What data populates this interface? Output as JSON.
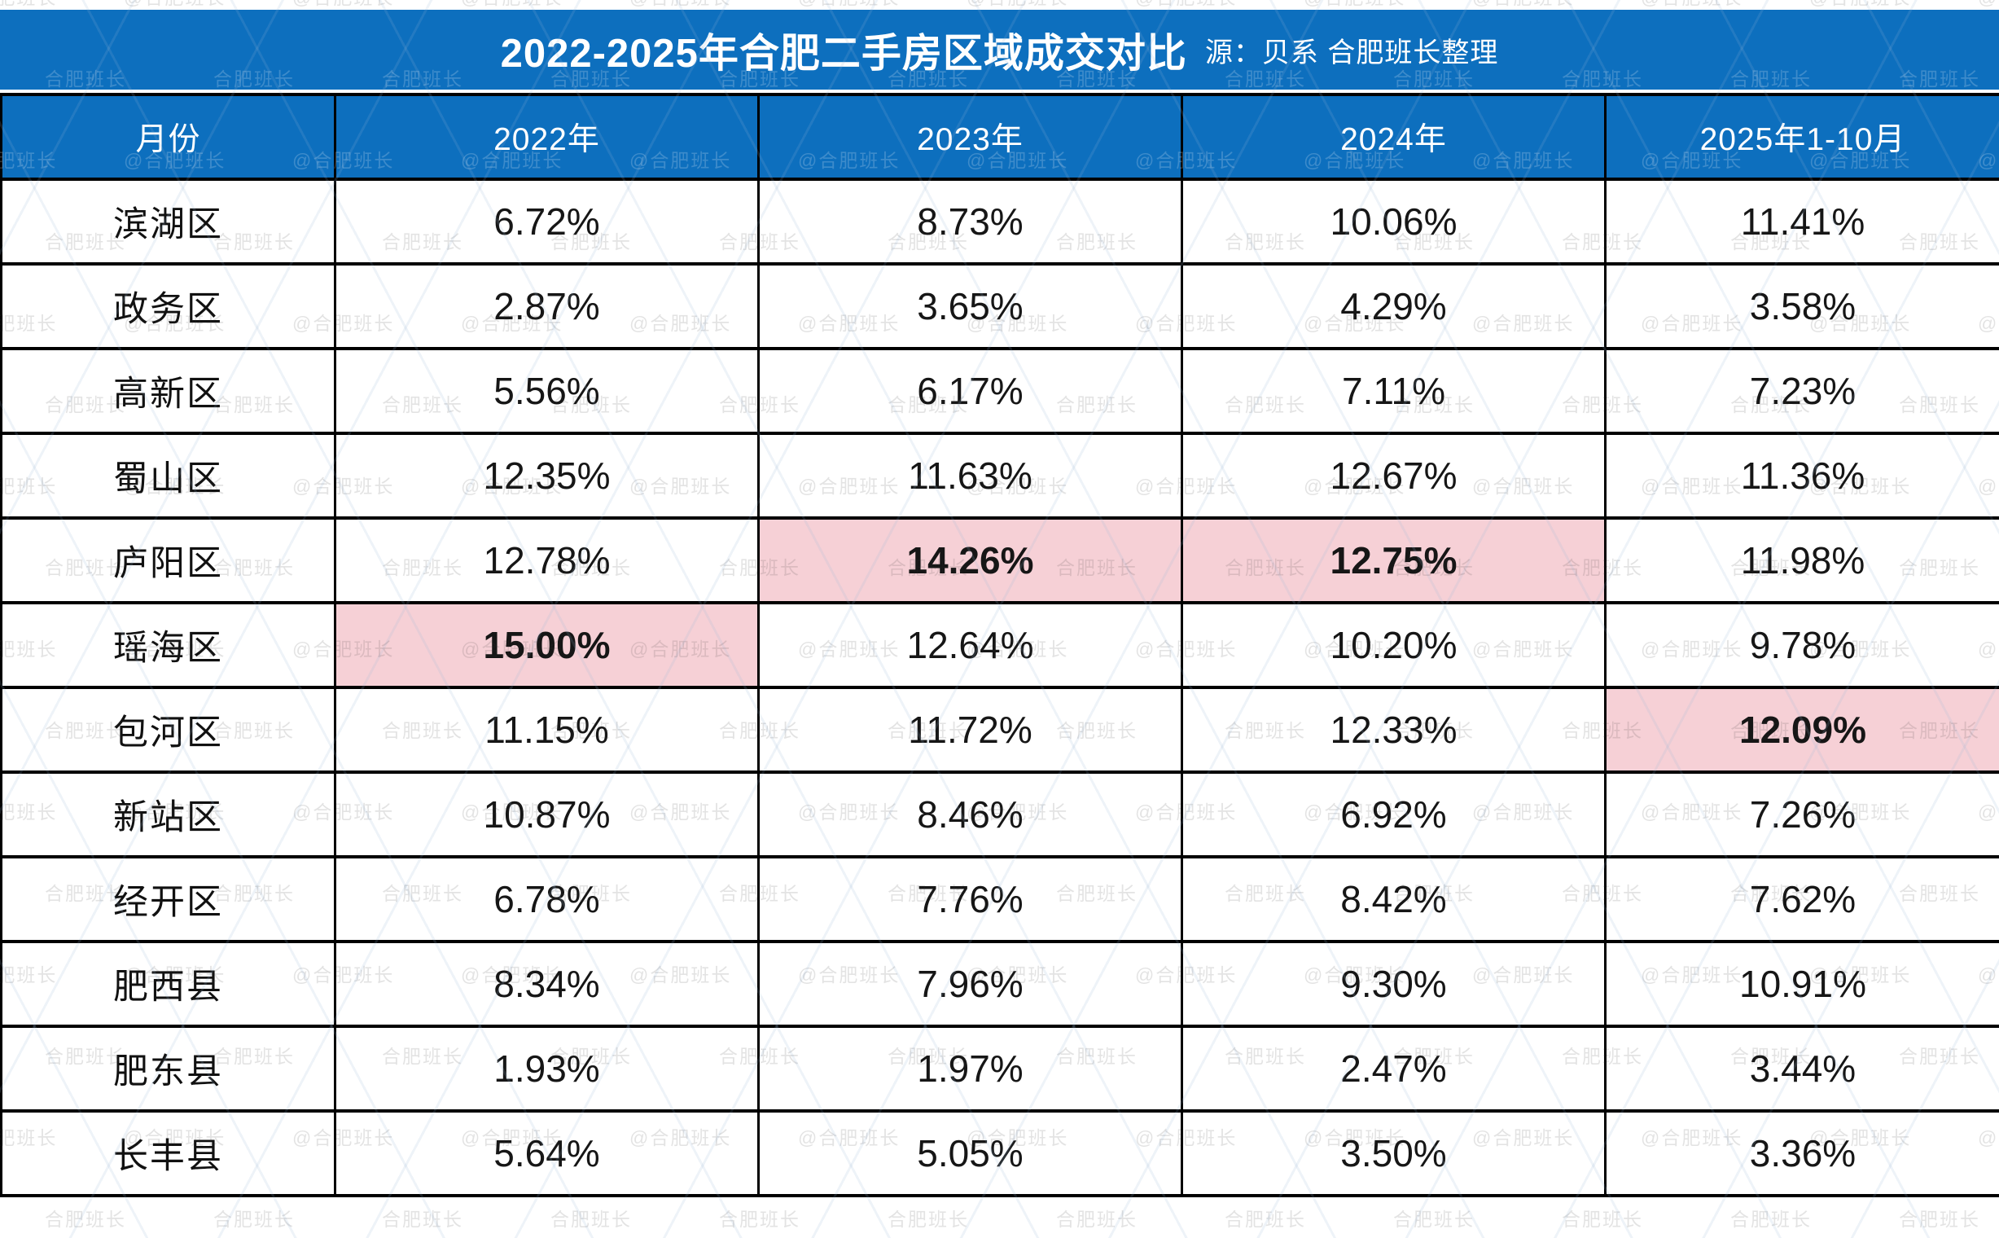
{
  "title": {
    "main": "2022-2025年合肥二手房区域成交对比",
    "source": "源：贝系 合肥班长整理"
  },
  "watermark": {
    "handle": "@合肥班长",
    "name": "合肥班长"
  },
  "colors": {
    "header_blue": "#0d6fbe",
    "highlight_pink": "#f6d0d6",
    "border_black": "#000000",
    "text_white": "#ffffff",
    "text_black": "#161616"
  },
  "chart_data": {
    "type": "table",
    "columns": [
      "月份",
      "2022年",
      "2023年",
      "2024年",
      "2025年1-10月"
    ],
    "rows": [
      {
        "district": "滨湖区",
        "values": [
          "6.72%",
          "8.73%",
          "10.06%",
          "11.41%"
        ],
        "highlight": []
      },
      {
        "district": "政务区",
        "values": [
          "2.87%",
          "3.65%",
          "4.29%",
          "3.58%"
        ],
        "highlight": []
      },
      {
        "district": "高新区",
        "values": [
          "5.56%",
          "6.17%",
          "7.11%",
          "7.23%"
        ],
        "highlight": []
      },
      {
        "district": "蜀山区",
        "values": [
          "12.35%",
          "11.63%",
          "12.67%",
          "11.36%"
        ],
        "highlight": []
      },
      {
        "district": "庐阳区",
        "values": [
          "12.78%",
          "14.26%",
          "12.75%",
          "11.98%"
        ],
        "highlight": [
          1,
          2
        ]
      },
      {
        "district": "瑶海区",
        "values": [
          "15.00%",
          "12.64%",
          "10.20%",
          "9.78%"
        ],
        "highlight": [
          0
        ]
      },
      {
        "district": "包河区",
        "values": [
          "11.15%",
          "11.72%",
          "12.33%",
          "12.09%"
        ],
        "highlight": [
          3
        ]
      },
      {
        "district": "新站区",
        "values": [
          "10.87%",
          "8.46%",
          "6.92%",
          "7.26%"
        ],
        "highlight": []
      },
      {
        "district": "经开区",
        "values": [
          "6.78%",
          "7.76%",
          "8.42%",
          "7.62%"
        ],
        "highlight": []
      },
      {
        "district": "肥西县",
        "values": [
          "8.34%",
          "7.96%",
          "9.30%",
          "10.91%"
        ],
        "highlight": []
      },
      {
        "district": "肥东县",
        "values": [
          "1.93%",
          "1.97%",
          "2.47%",
          "3.44%"
        ],
        "highlight": []
      },
      {
        "district": "长丰县",
        "values": [
          "5.64%",
          "5.05%",
          "3.50%",
          "3.36%"
        ],
        "highlight": []
      }
    ]
  }
}
